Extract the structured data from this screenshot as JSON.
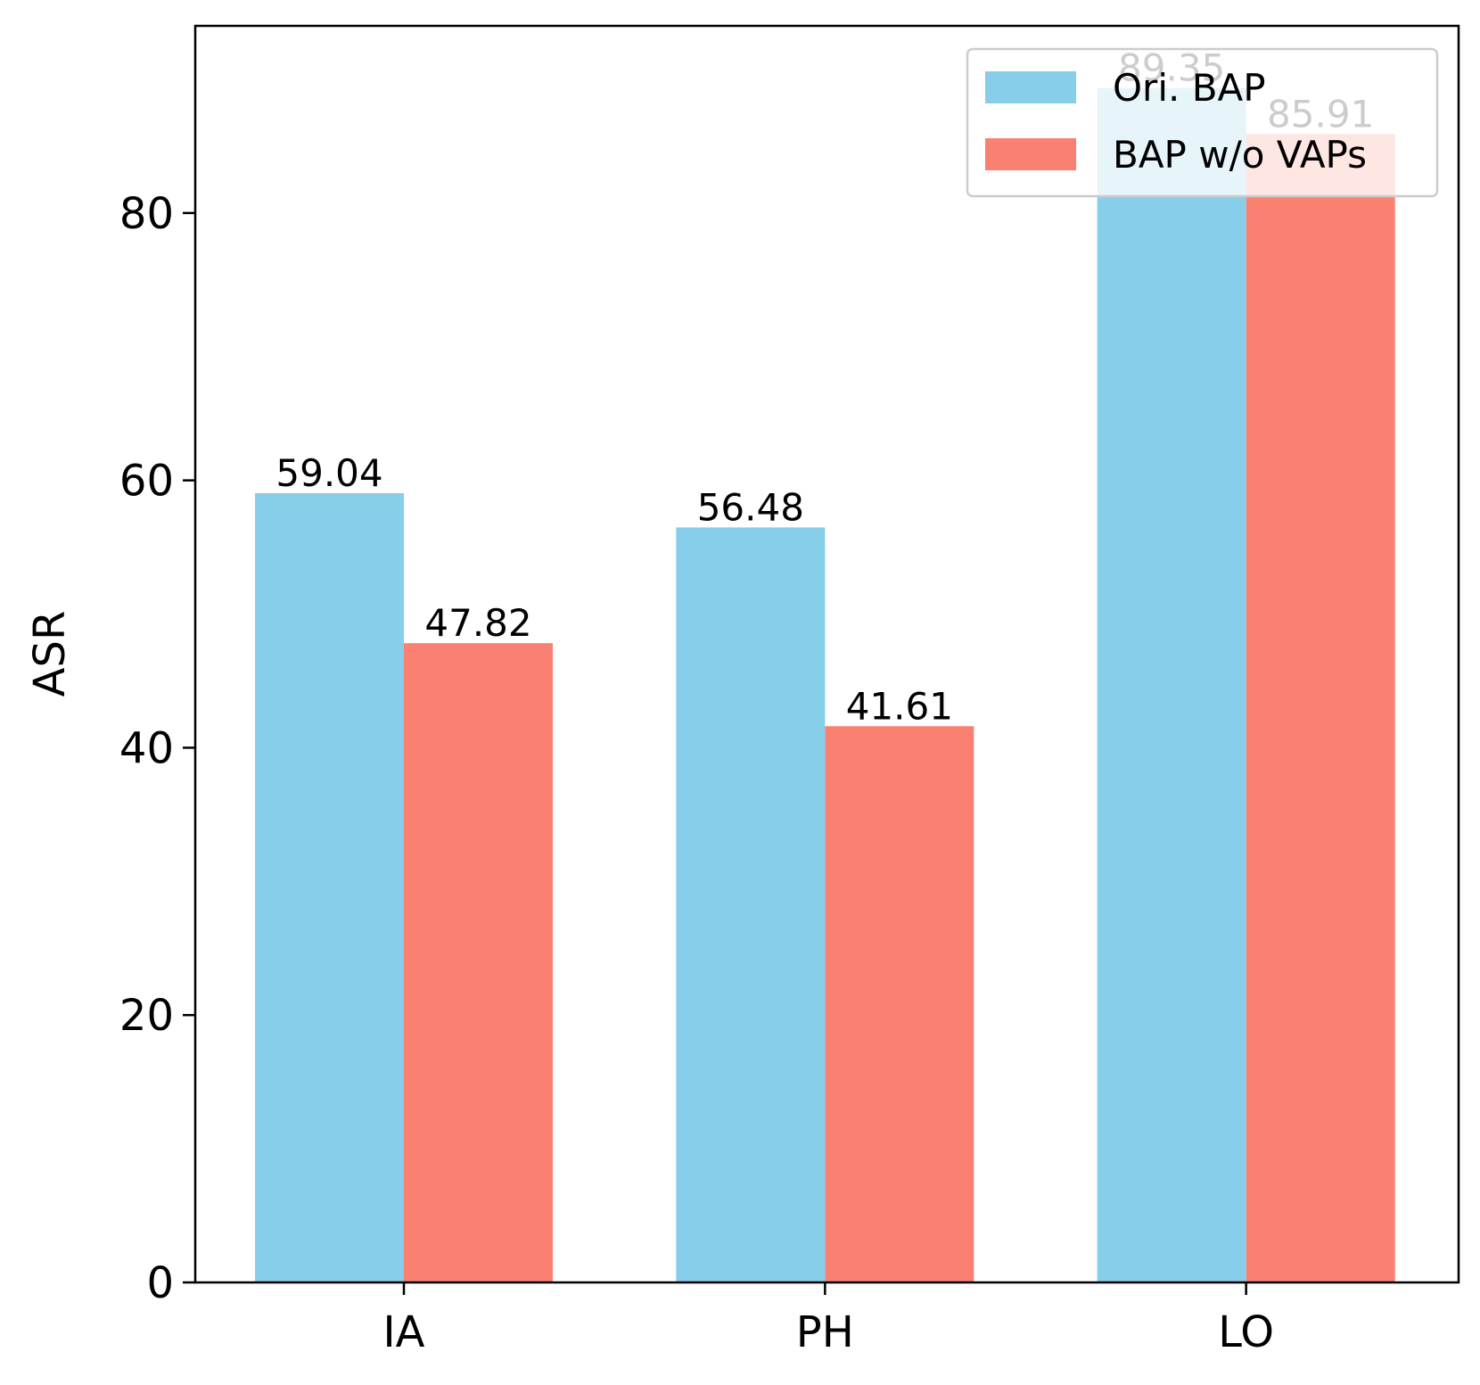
{
  "chart_data": {
    "type": "bar",
    "title": "",
    "xlabel": "",
    "ylabel": "ASR",
    "categories": [
      "IA",
      "PH",
      "LO"
    ],
    "series": [
      {
        "name": "Ori. BAP",
        "values": [
          59.04,
          56.48,
          89.35
        ],
        "value_labels": [
          "59.04",
          "56.48",
          "89.35"
        ],
        "color": "#87CEEB"
      },
      {
        "name": "BAP w/o VAPs",
        "values": [
          47.82,
          41.61,
          85.91
        ],
        "value_labels": [
          "47.82",
          "41.61",
          "85.91"
        ],
        "color": "#FA8072"
      }
    ],
    "ylim": [
      0,
      94
    ],
    "yticks": [
      0,
      20,
      40,
      60,
      80
    ],
    "ytick_labels": [
      "0",
      "20",
      "40",
      "60",
      "80"
    ],
    "grid": false,
    "legend_position": "top-right"
  }
}
